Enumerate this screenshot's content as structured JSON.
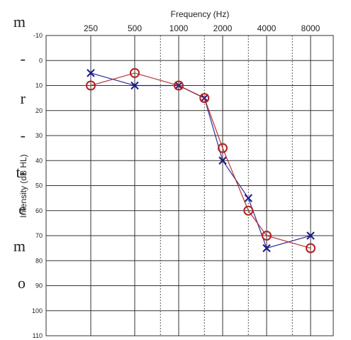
{
  "side_text": [
    "m",
    "-",
    "r",
    "-",
    "t-",
    "e",
    "m",
    "o"
  ],
  "chart_data": {
    "type": "line",
    "xlabel": "Frequency (Hz)",
    "ylabel": "Intensity (dB HL)",
    "x_tick_labels": [
      "250",
      "500",
      "1000",
      "2000",
      "4000",
      "8000"
    ],
    "x_values": [
      250,
      500,
      1000,
      1500,
      2000,
      3000,
      4000,
      8000
    ],
    "x_scale": "log2",
    "y_ticks": [
      -10,
      0,
      10,
      20,
      30,
      40,
      50,
      60,
      70,
      80,
      90,
      100,
      110
    ],
    "ylim": [
      -10,
      110
    ],
    "y_inverted": true,
    "grid": true,
    "series": [
      {
        "marker": "X",
        "color": "#1a1a8c",
        "x": [
          250,
          500,
          1000,
          1500,
          2000,
          3000,
          4000,
          8000
        ],
        "values": [
          5,
          10,
          10,
          15,
          40,
          55,
          75,
          70
        ]
      },
      {
        "marker": "O",
        "color": "#b22222",
        "x": [
          250,
          500,
          1000,
          1500,
          2000,
          3000,
          4000,
          8000
        ],
        "values": [
          10,
          5,
          10,
          15,
          35,
          60,
          70,
          75
        ]
      }
    ]
  }
}
